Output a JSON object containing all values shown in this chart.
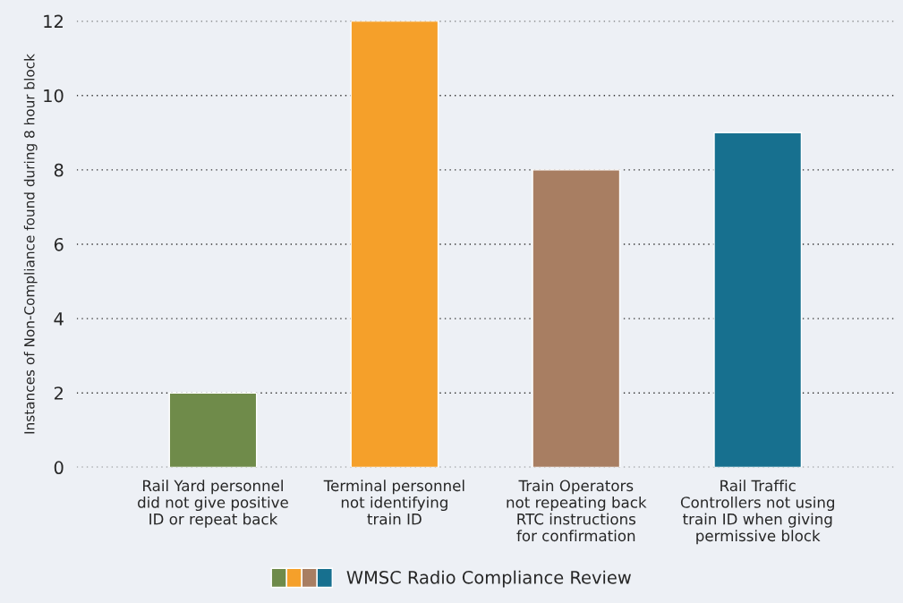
{
  "chart_data": {
    "type": "bar",
    "ylabel": "Instances of Non-Compliance found during 8 hour block",
    "categories": [
      "Rail Yard personnel\ndid not give positive\nID or repeat back",
      "Terminal personnel\nnot identifying\ntrain ID",
      "Train Operators\nnot repeating back\nRTC instructions\nfor confirmation",
      "Rail Traffic\nControllers not using\ntrain ID when giving\npermissive block"
    ],
    "series": [
      {
        "name": "WMSC Radio Compliance Review",
        "colors": [
          "#6f8b4a",
          "#f5a02a",
          "#a87e62",
          "#17708f"
        ],
        "values": [
          2,
          12,
          8,
          9
        ]
      }
    ],
    "ylim": [
      0,
      12
    ],
    "yticks": [
      0,
      2,
      4,
      6,
      8,
      10,
      12
    ],
    "grid": "y",
    "legend": "bottom"
  }
}
